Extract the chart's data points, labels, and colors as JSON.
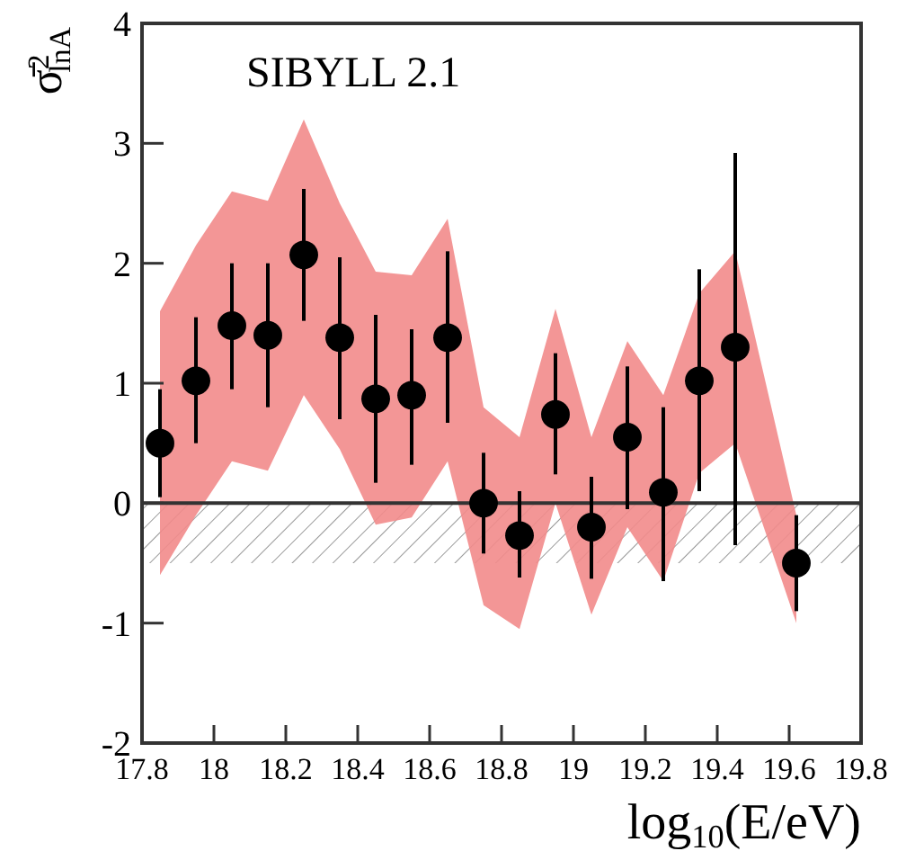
{
  "chart_data": {
    "type": "scatter",
    "xlabel": "log$_{10}$(E/eV)",
    "ylabel": "σ̄$^{2}$$_{lnA}$",
    "annotations": [
      "SIBYLL 2.1"
    ],
    "xlim": [
      17.8,
      19.8
    ],
    "xticks": [
      17.8,
      18,
      18.2,
      18.4,
      18.6,
      18.8,
      19,
      19.2,
      19.4,
      19.6,
      19.8
    ],
    "ylim": [
      -2,
      4
    ],
    "yticks": [
      -2,
      -1,
      0,
      1,
      2,
      3,
      4
    ],
    "marker": "circle",
    "ref_lines": [
      {
        "axis": "y",
        "value": 0,
        "color": "#333333"
      }
    ],
    "bands": [
      {
        "axis": "y",
        "from": -0.5,
        "to": 0,
        "color": "#999999"
      }
    ],
    "series": [
      {
        "color": "#000000",
        "x": [
          17.85,
          17.95,
          18.05,
          18.15,
          18.25,
          18.35,
          18.45,
          18.55,
          18.65,
          18.75,
          18.85,
          18.95,
          19.05,
          19.15,
          19.25,
          19.35,
          19.45,
          19.62
        ],
        "values": [
          0.5,
          1.02,
          1.48,
          1.4,
          2.07,
          1.38,
          0.87,
          0.9,
          1.38,
          0.0,
          -0.27,
          0.74,
          -0.2,
          0.55,
          0.09,
          1.02,
          1.3,
          -0.5
        ],
        "errors": [
          [
            0.05,
            0.95
          ],
          [
            0.5,
            1.55
          ],
          [
            0.95,
            2.0
          ],
          [
            0.8,
            2.0
          ],
          [
            1.52,
            2.62
          ],
          [
            0.7,
            2.05
          ],
          [
            0.17,
            1.57
          ],
          [
            0.32,
            1.45
          ],
          [
            0.67,
            2.1
          ],
          [
            -0.42,
            0.42
          ],
          [
            -0.62,
            0.1
          ],
          [
            0.24,
            1.25
          ],
          [
            -0.63,
            0.22
          ],
          [
            -0.05,
            1.14
          ],
          [
            -0.65,
            0.8
          ],
          [
            0.1,
            1.95
          ],
          [
            -0.35,
            2.92
          ],
          [
            -0.9,
            -0.1
          ]
        ],
        "lower": [
          -0.6,
          -0.1,
          0.35,
          0.27,
          0.9,
          0.45,
          -0.18,
          -0.12,
          0.35,
          -0.85,
          -1.05,
          0.0,
          -0.93,
          -0.2,
          -0.65,
          0.25,
          0.5,
          -1.0
        ],
        "upper": [
          1.6,
          2.15,
          2.6,
          2.52,
          3.2,
          2.5,
          1.93,
          1.9,
          2.37,
          0.8,
          0.55,
          1.62,
          0.55,
          1.35,
          0.9,
          1.75,
          2.1,
          -0.1
        ]
      }
    ]
  }
}
